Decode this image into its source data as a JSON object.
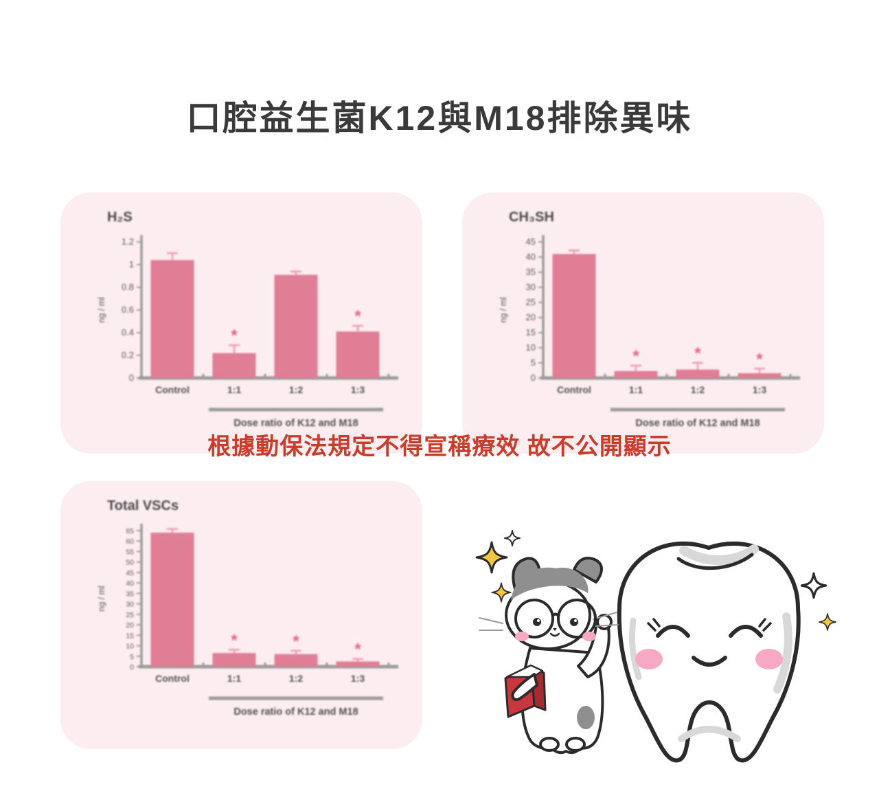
{
  "title": "口腔益生菌K12與M18排除異味",
  "disclaimer": "根據動保法規定不得宣稱療效 故不公開顯示",
  "palette": {
    "card_bg": "#fcedf1",
    "bar_pink": "#e07e96",
    "error_pink": "#ef9ab0",
    "asterisk_pink": "#e3647f",
    "axis_gray": "#9b9b9b",
    "chart_text": "#5a5a5a",
    "title_text": "#3a3a3a",
    "disclaimer_red": "#cc3a28",
    "sparkle_yellow": "#f6c63e",
    "outline_dark": "#2b2b2b",
    "cheek_pink": "#f6a8c5"
  },
  "chart_data": [
    {
      "type": "bar",
      "title": "H₂S",
      "ylabel": "ng / ml",
      "xlabel": "Dose ratio of K12 and M18",
      "categories": [
        "Control",
        "1:1",
        "1:2",
        "1:3"
      ],
      "values": [
        1.04,
        0.22,
        0.91,
        0.41
      ],
      "errors": [
        0.06,
        0.07,
        0.03,
        0.05
      ],
      "significance": [
        "",
        "*",
        "",
        "*"
      ],
      "ylim": [
        0,
        1.2
      ],
      "yticks": [
        "1.2",
        "1",
        "0.8",
        "0.6",
        "0.4",
        "0.2",
        "0"
      ],
      "grid": false,
      "legend": null
    },
    {
      "type": "bar",
      "title": "CH₃SH",
      "ylabel": "ng / ml",
      "xlabel": "Dose ratio of K12 and M18",
      "categories": [
        "Control",
        "1:1",
        "1:2",
        "1:3"
      ],
      "values": [
        41,
        2.3,
        2.8,
        1.6
      ],
      "errors": [
        1.2,
        1.8,
        2.2,
        1.5
      ],
      "significance": [
        "",
        "*",
        "*",
        "*"
      ],
      "ylim": [
        0,
        45
      ],
      "yticks": [
        "45",
        "40",
        "35",
        "30",
        "25",
        "20",
        "15",
        "10",
        "5",
        "0"
      ],
      "grid": false,
      "legend": null
    },
    {
      "type": "bar",
      "title": "Total VSCs",
      "ylabel": "ng / ml",
      "xlabel": "Dose ratio of K12 and M18",
      "categories": [
        "Control",
        "1:1",
        "1:2",
        "1:3"
      ],
      "values": [
        64,
        6.5,
        6,
        2.5
      ],
      "errors": [
        1.8,
        1.6,
        1.6,
        1.2
      ],
      "significance": [
        "",
        "*",
        "*",
        "*"
      ],
      "ylim": [
        0,
        65
      ],
      "yticks": [
        "65",
        "60",
        "55",
        "50",
        "45",
        "40",
        "35",
        "30",
        "25",
        "20",
        "15",
        "10",
        "5",
        "0"
      ],
      "grid": false,
      "legend": null
    }
  ]
}
